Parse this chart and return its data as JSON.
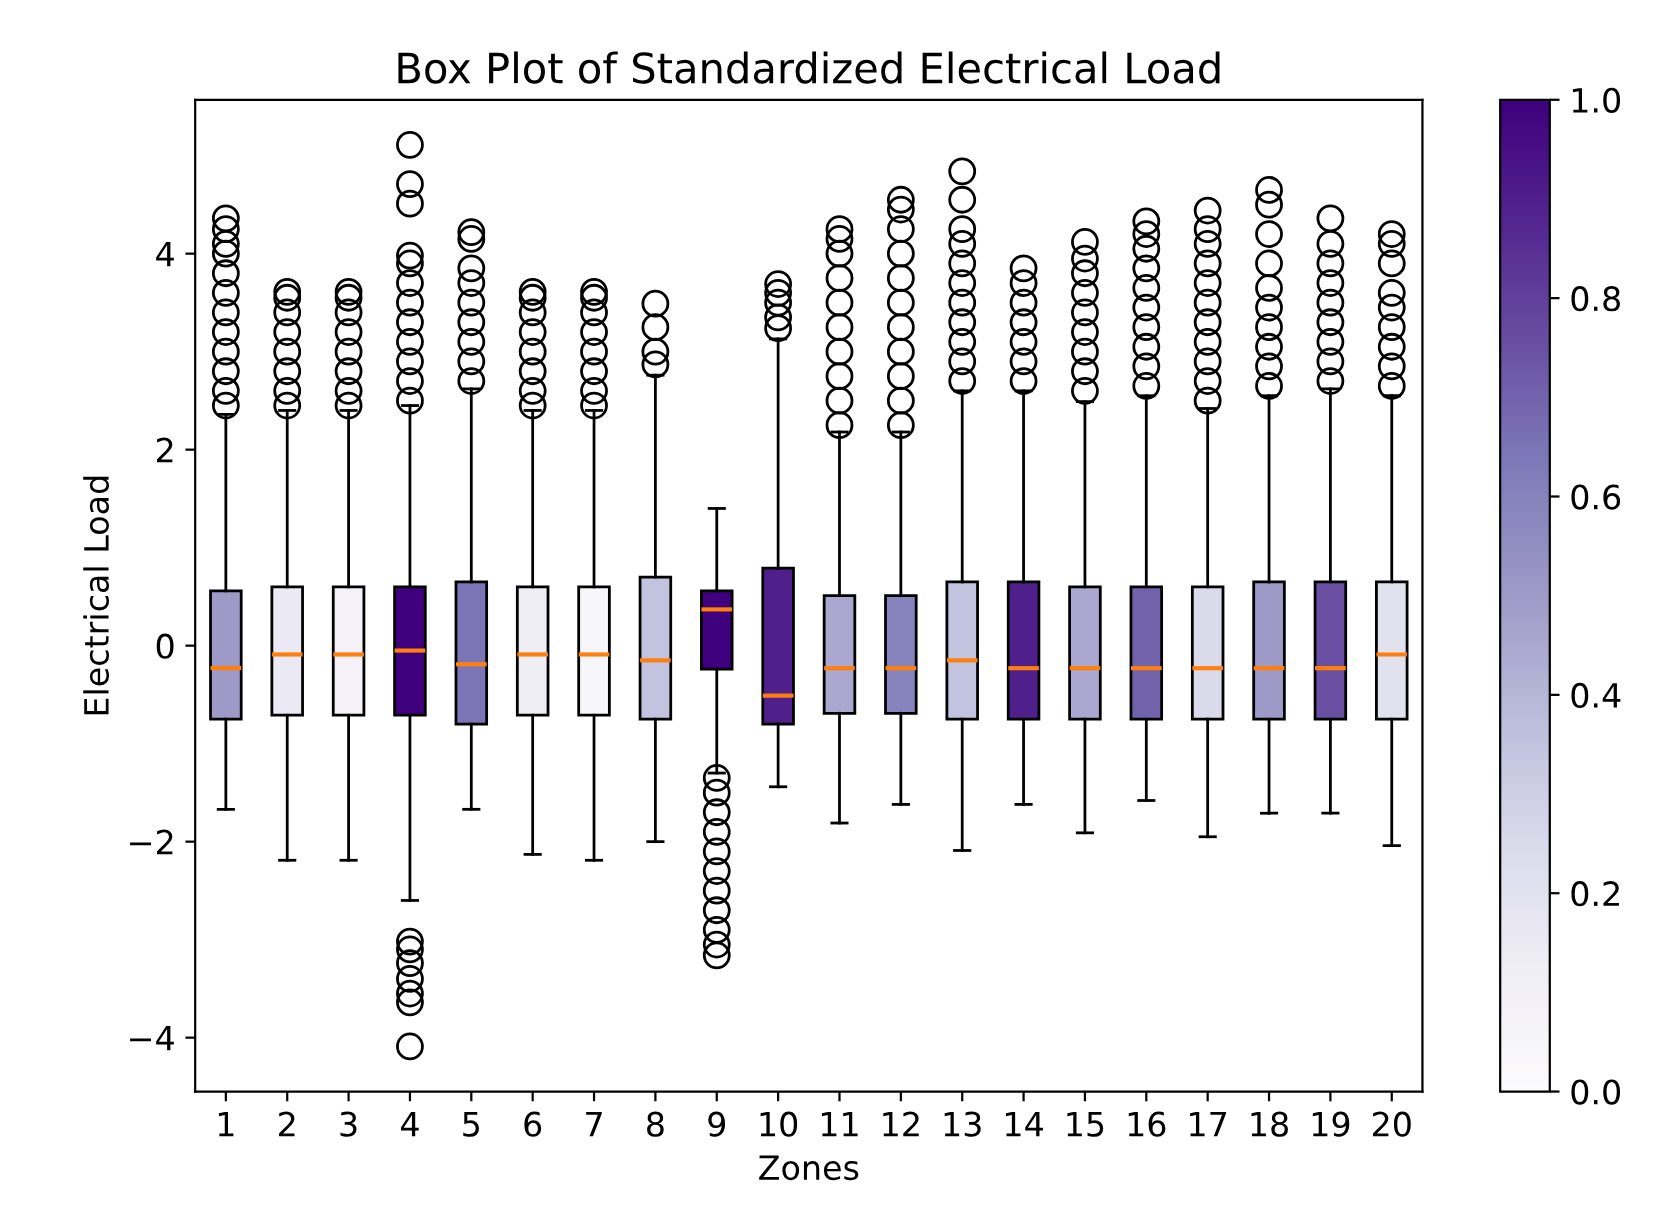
{
  "chart_data": {
    "type": "box",
    "title": "Box Plot of Standardized Electrical Load",
    "xlabel": "Zones",
    "ylabel": "Electrical Load",
    "categories": [
      "1",
      "2",
      "3",
      "4",
      "5",
      "6",
      "7",
      "8",
      "9",
      "10",
      "11",
      "12",
      "13",
      "14",
      "15",
      "16",
      "17",
      "18",
      "19",
      "20"
    ],
    "boxes": [
      {
        "low": -1.67,
        "q1": -0.75,
        "median": -0.23,
        "q3": 0.56,
        "high": 2.36,
        "outliers": [
          2.45,
          2.6,
          2.8,
          3.0,
          3.2,
          3.4,
          3.6,
          3.8,
          4.0,
          4.1,
          4.25,
          4.36
        ]
      },
      {
        "low": -2.19,
        "q1": -0.71,
        "median": -0.09,
        "q3": 0.6,
        "high": 2.4,
        "outliers": [
          2.45,
          2.6,
          2.8,
          3.0,
          3.2,
          3.4,
          3.55,
          3.61
        ]
      },
      {
        "low": -2.19,
        "q1": -0.71,
        "median": -0.09,
        "q3": 0.6,
        "high": 2.4,
        "outliers": [
          2.45,
          2.6,
          2.8,
          3.0,
          3.2,
          3.4,
          3.55,
          3.61
        ]
      },
      {
        "low": -2.6,
        "q1": -0.71,
        "median": -0.05,
        "q3": 0.6,
        "high": 2.45,
        "outliers": [
          2.5,
          2.7,
          2.9,
          3.1,
          3.3,
          3.5,
          3.7,
          3.9,
          3.98,
          4.51,
          4.71,
          5.11,
          -3.02,
          -3.1,
          -3.24,
          -3.4,
          -3.55,
          -3.64,
          -4.09
        ]
      },
      {
        "low": -1.67,
        "q1": -0.8,
        "median": -0.19,
        "q3": 0.65,
        "high": 2.62,
        "outliers": [
          2.7,
          2.9,
          3.1,
          3.3,
          3.5,
          3.7,
          3.85,
          4.15,
          4.22
        ]
      },
      {
        "low": -2.13,
        "q1": -0.71,
        "median": -0.09,
        "q3": 0.6,
        "high": 2.4,
        "outliers": [
          2.45,
          2.6,
          2.8,
          3.0,
          3.2,
          3.4,
          3.55,
          3.61
        ]
      },
      {
        "low": -2.19,
        "q1": -0.71,
        "median": -0.09,
        "q3": 0.6,
        "high": 2.4,
        "outliers": [
          2.45,
          2.6,
          2.8,
          3.0,
          3.2,
          3.4,
          3.55,
          3.61
        ]
      },
      {
        "low": -2.0,
        "q1": -0.75,
        "median": -0.15,
        "q3": 0.7,
        "high": 2.76,
        "outliers": [
          2.87,
          3.0,
          3.25,
          3.49
        ]
      },
      {
        "low": -1.3,
        "q1": -0.24,
        "median": 0.37,
        "q3": 0.56,
        "high": 1.4,
        "outliers": [
          -1.35,
          -1.5,
          -1.7,
          -1.9,
          -2.1,
          -2.3,
          -2.5,
          -2.7,
          -2.9,
          -3.05,
          -3.16
        ]
      },
      {
        "low": -1.44,
        "q1": -0.8,
        "median": -0.51,
        "q3": 0.79,
        "high": 3.13,
        "outliers": [
          3.24,
          3.35,
          3.5,
          3.6,
          3.69
        ]
      },
      {
        "low": -1.81,
        "q1": -0.69,
        "median": -0.23,
        "q3": 0.51,
        "high": 2.18,
        "outliers": [
          2.25,
          2.5,
          2.75,
          3.0,
          3.25,
          3.5,
          3.75,
          4.0,
          4.15,
          4.25
        ]
      },
      {
        "low": -1.62,
        "q1": -0.69,
        "median": -0.23,
        "q3": 0.51,
        "high": 2.18,
        "outliers": [
          2.25,
          2.5,
          2.75,
          3.0,
          3.25,
          3.5,
          3.75,
          4.0,
          4.25,
          4.45,
          4.55
        ]
      },
      {
        "low": -2.09,
        "q1": -0.75,
        "median": -0.15,
        "q3": 0.65,
        "high": 2.6,
        "outliers": [
          2.7,
          2.9,
          3.1,
          3.3,
          3.5,
          3.7,
          3.9,
          4.1,
          4.25,
          4.55,
          4.84
        ]
      },
      {
        "low": -1.62,
        "q1": -0.75,
        "median": -0.23,
        "q3": 0.65,
        "high": 2.6,
        "outliers": [
          2.7,
          2.9,
          3.1,
          3.3,
          3.5,
          3.7,
          3.85
        ]
      },
      {
        "low": -1.91,
        "q1": -0.75,
        "median": -0.23,
        "q3": 0.6,
        "high": 2.49,
        "outliers": [
          2.6,
          2.8,
          3.0,
          3.2,
          3.4,
          3.6,
          3.8,
          3.95,
          4.12
        ]
      },
      {
        "low": -1.58,
        "q1": -0.75,
        "median": -0.23,
        "q3": 0.6,
        "high": 2.55,
        "outliers": [
          2.65,
          2.85,
          3.05,
          3.25,
          3.45,
          3.65,
          3.85,
          4.05,
          4.2,
          4.33
        ]
      },
      {
        "low": -1.95,
        "q1": -0.75,
        "median": -0.23,
        "q3": 0.6,
        "high": 2.42,
        "outliers": [
          2.5,
          2.7,
          2.9,
          3.1,
          3.3,
          3.5,
          3.7,
          3.9,
          4.1,
          4.25,
          4.44
        ]
      },
      {
        "low": -1.71,
        "q1": -0.75,
        "median": -0.23,
        "q3": 0.65,
        "high": 2.55,
        "outliers": [
          2.65,
          2.85,
          3.05,
          3.25,
          3.45,
          3.65,
          3.9,
          4.2,
          4.5,
          4.65
        ]
      },
      {
        "low": -1.71,
        "q1": -0.75,
        "median": -0.23,
        "q3": 0.65,
        "high": 2.62,
        "outliers": [
          2.7,
          2.9,
          3.1,
          3.3,
          3.5,
          3.7,
          3.9,
          4.1,
          4.36
        ]
      },
      {
        "low": -2.04,
        "q1": -0.75,
        "median": -0.09,
        "q3": 0.65,
        "high": 2.55,
        "outliers": [
          2.65,
          2.85,
          3.05,
          3.25,
          3.45,
          3.6,
          3.9,
          4.1,
          4.2
        ]
      }
    ],
    "cvalues": [
      0.5,
      0.15,
      0.08,
      1.0,
      0.65,
      0.12,
      0.05,
      0.35,
      1.0,
      0.9,
      0.45,
      0.6,
      0.35,
      0.9,
      0.45,
      0.7,
      0.25,
      0.5,
      0.75,
      0.2
    ],
    "clim": [
      0,
      1
    ],
    "cticks": [
      {
        "value": 0,
        "label": "0.0"
      },
      {
        "value": 0.2,
        "label": "0.2"
      },
      {
        "value": 0.4,
        "label": "0.4"
      },
      {
        "value": 0.6,
        "label": "0.6"
      },
      {
        "value": 0.8,
        "label": "0.8"
      },
      {
        "value": 1,
        "label": "1.0"
      }
    ],
    "ylim": [
      -4.55,
      5.57
    ],
    "yticks": [
      {
        "value": -4,
        "label": "−4"
      },
      {
        "value": -2,
        "label": "−2"
      },
      0,
      2,
      4
    ],
    "marker": "circle",
    "grid": false
  }
}
